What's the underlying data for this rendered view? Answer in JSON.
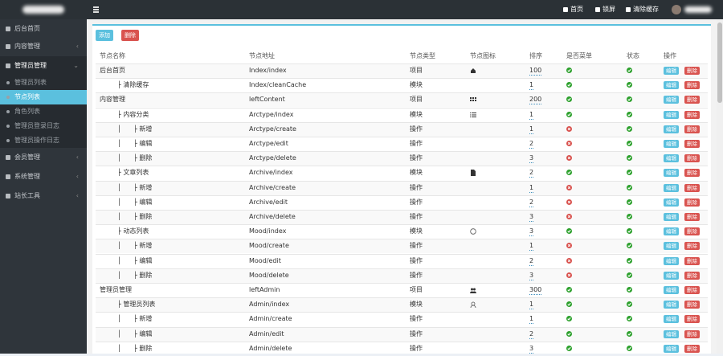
{
  "sidebar": {
    "items": [
      {
        "label": "后台首页"
      },
      {
        "label": "内容管理"
      },
      {
        "label": "管理员管理",
        "children": [
          "管理员列表",
          "节点列表",
          "角色列表",
          "管理员登录日志",
          "管理员操作日志"
        ]
      },
      {
        "label": "会员管理"
      },
      {
        "label": "系统管理"
      },
      {
        "label": "站长工具"
      }
    ],
    "active_item": 2,
    "active_child": 1
  },
  "topbar": {
    "links": [
      "首页",
      "锁屏",
      "清除缓存"
    ]
  },
  "toolbar": {
    "buttons": [
      "添加",
      "删除"
    ]
  },
  "table": {
    "headers": [
      "节点名称",
      "节点地址",
      "节点类型",
      "节点图标",
      "排序",
      "是否菜单",
      "状态",
      "操作"
    ],
    "actions": [
      "编辑",
      "删除"
    ],
    "rows": [
      {
        "name": "后台首页",
        "address": "Index/index",
        "type": "项目",
        "icon": "home",
        "sort": "100",
        "menu": true,
        "status": true
      },
      {
        "name": "├ 清除缓存",
        "address": "Index/cleanCache",
        "type": "模块",
        "icon": null,
        "sort": "1",
        "menu": true,
        "status": true
      },
      {
        "name": "内容管理",
        "address": "leftContent",
        "type": "项目",
        "icon": "th",
        "sort": "200",
        "menu": true,
        "status": true
      },
      {
        "name": "├ 内容分类",
        "address": "Arctype/index",
        "type": "模块",
        "icon": "list",
        "sort": "1",
        "menu": true,
        "status": true
      },
      {
        "name": "│      ├ 新增",
        "address": "Arctype/create",
        "type": "操作",
        "icon": null,
        "sort": "1",
        "menu": false,
        "status": true
      },
      {
        "name": "│      ├ 编辑",
        "address": "Arctype/edit",
        "type": "操作",
        "icon": null,
        "sort": "2",
        "menu": false,
        "status": true
      },
      {
        "name": "│      ├ 删除",
        "address": "Arctype/delete",
        "type": "操作",
        "icon": null,
        "sort": "3",
        "menu": false,
        "status": true
      },
      {
        "name": "├ 文章列表",
        "address": "Archive/index",
        "type": "模块",
        "icon": "file",
        "sort": "2",
        "menu": true,
        "status": true
      },
      {
        "name": "│      ├ 新增",
        "address": "Archive/create",
        "type": "操作",
        "icon": null,
        "sort": "1",
        "menu": false,
        "status": true
      },
      {
        "name": "│      ├ 编辑",
        "address": "Archive/edit",
        "type": "操作",
        "icon": null,
        "sort": "2",
        "menu": false,
        "status": true
      },
      {
        "name": "│      ├ 删除",
        "address": "Archive/delete",
        "type": "操作",
        "icon": null,
        "sort": "3",
        "menu": false,
        "status": true
      },
      {
        "name": "├ 动态列表",
        "address": "Mood/index",
        "type": "模块",
        "icon": "smile",
        "sort": "3",
        "menu": true,
        "status": true
      },
      {
        "name": "│      ├ 新增",
        "address": "Mood/create",
        "type": "操作",
        "icon": null,
        "sort": "1",
        "menu": false,
        "status": true
      },
      {
        "name": "│      ├ 编辑",
        "address": "Mood/edit",
        "type": "操作",
        "icon": null,
        "sort": "2",
        "menu": false,
        "status": true
      },
      {
        "name": "│      ├ 删除",
        "address": "Mood/delete",
        "type": "操作",
        "icon": null,
        "sort": "3",
        "menu": false,
        "status": true
      },
      {
        "name": "管理员管理",
        "address": "leftAdmin",
        "type": "项目",
        "icon": "users",
        "sort": "300",
        "menu": true,
        "status": true
      },
      {
        "name": "├ 管理员列表",
        "address": "Admin/index",
        "type": "模块",
        "icon": "user",
        "sort": "1",
        "menu": true,
        "status": true
      },
      {
        "name": "│      ├ 新增",
        "address": "Admin/create",
        "type": "操作",
        "icon": null,
        "sort": "1",
        "menu": true,
        "status": true
      },
      {
        "name": "│      ├ 编辑",
        "address": "Admin/edit",
        "type": "操作",
        "icon": null,
        "sort": "2",
        "menu": true,
        "status": true
      },
      {
        "name": "│      ├ 删除",
        "address": "Admin/delete",
        "type": "操作",
        "icon": null,
        "sort": "3",
        "menu": true,
        "status": true
      }
    ]
  }
}
